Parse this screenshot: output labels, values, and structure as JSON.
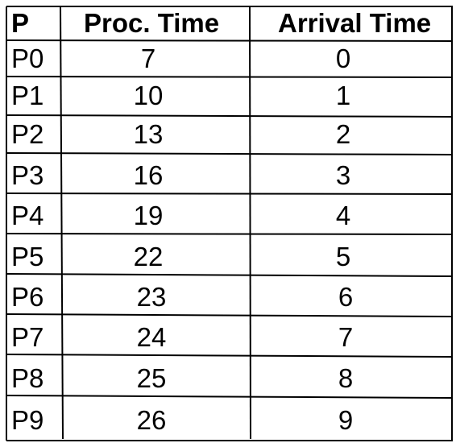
{
  "table": {
    "headers": [
      "P",
      "Proc. Time",
      "Arrival Time"
    ],
    "rows": [
      [
        "P0",
        "7",
        "0"
      ],
      [
        "P1",
        "10",
        "1"
      ],
      [
        "P2",
        "13",
        "2"
      ],
      [
        "P3",
        "16",
        "3"
      ],
      [
        "P4",
        "19",
        "4"
      ],
      [
        "P5",
        "22",
        "5"
      ],
      [
        "P6",
        "23",
        "6"
      ],
      [
        "P7",
        "24",
        "7"
      ],
      [
        "P8",
        "25",
        "8"
      ],
      [
        "P9",
        "26",
        "9"
      ]
    ]
  }
}
